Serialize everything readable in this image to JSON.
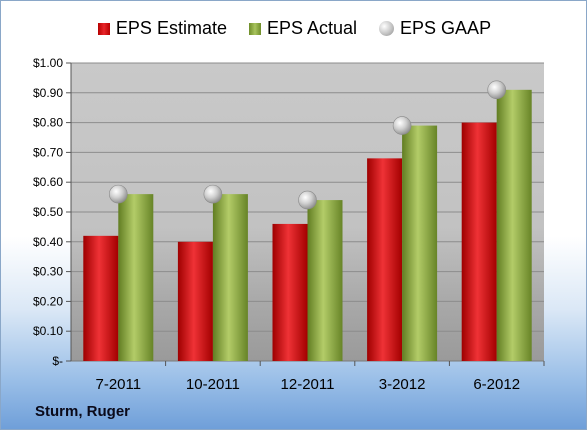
{
  "chart_data": {
    "type": "bar",
    "categories": [
      "7-2011",
      "10-2011",
      "12-2011",
      "3-2012",
      "6-2012"
    ],
    "series": [
      {
        "name": "EPS Estimate",
        "values": [
          0.42,
          0.4,
          0.46,
          0.68,
          0.8
        ],
        "color": "#d81e22"
      },
      {
        "name": "EPS Actual",
        "values": [
          0.56,
          0.56,
          0.54,
          0.79,
          0.91
        ],
        "color": "#8fb04a"
      },
      {
        "name": "EPS GAAP",
        "values": [
          0.56,
          0.56,
          0.54,
          0.79,
          0.91
        ],
        "color": "#b8b8b8",
        "marker": "sphere"
      }
    ],
    "yticks": [
      "$-",
      "$0.10",
      "$0.20",
      "$0.30",
      "$0.40",
      "$0.50",
      "$0.60",
      "$0.70",
      "$0.80",
      "$0.90",
      "$1.00"
    ],
    "ylim": [
      0,
      1.0
    ],
    "grid": true,
    "legend_position": "top-center"
  },
  "legend": {
    "estimate": "EPS Estimate",
    "actual": "EPS Actual",
    "gaap": "EPS GAAP"
  },
  "company": "Sturm, Ruger"
}
